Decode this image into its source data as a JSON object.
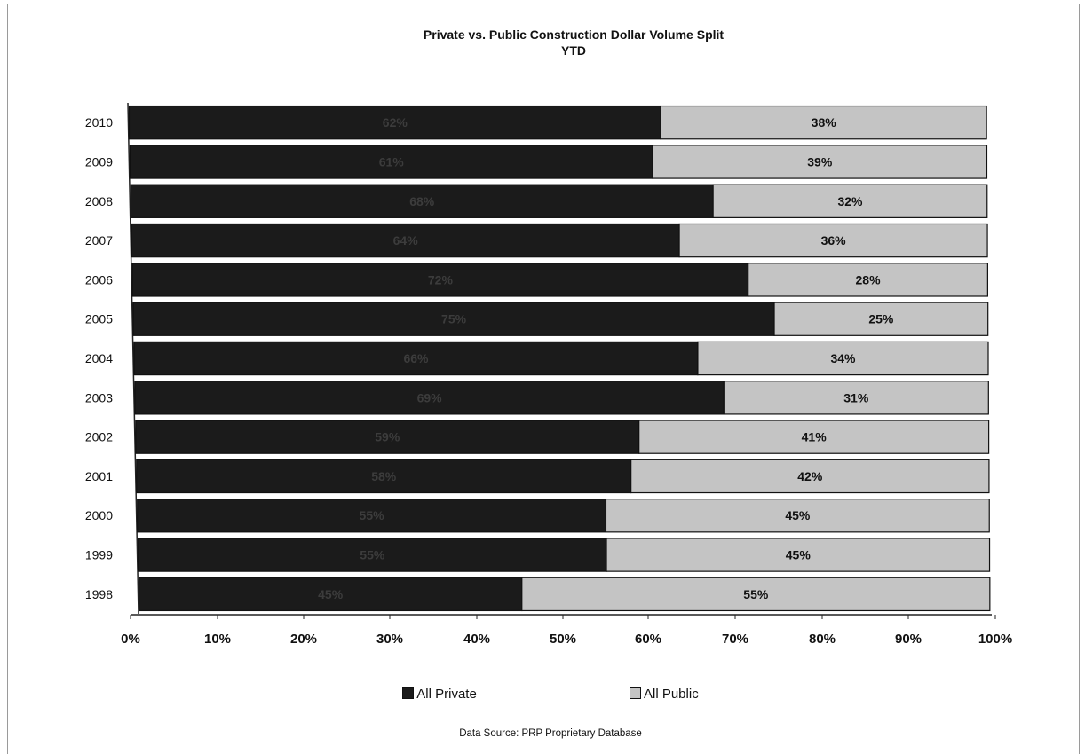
{
  "chart_data": {
    "type": "bar",
    "orientation": "horizontal",
    "stacked": true,
    "title": "Private vs. Public Construction Dollar Volume Split",
    "subtitle": "YTD",
    "categories": [
      "2010",
      "2009",
      "2008",
      "2007",
      "2006",
      "2005",
      "2004",
      "2003",
      "2002",
      "2001",
      "2000",
      "1999",
      "1998"
    ],
    "series": [
      {
        "name": "All Private",
        "values": [
          62,
          61,
          68,
          64,
          72,
          75,
          66,
          69,
          59,
          58,
          55,
          55,
          45
        ],
        "labels": [
          "62%",
          "61%",
          "68%",
          "64%",
          "72%",
          "75%",
          "66%",
          "69%",
          "59%",
          "58%",
          "55%",
          "55%",
          "45%"
        ],
        "color": "#1b1b1b",
        "label_color": "#3c3c3c"
      },
      {
        "name": "All Public",
        "values": [
          38,
          39,
          32,
          36,
          28,
          25,
          34,
          31,
          41,
          42,
          45,
          45,
          55
        ],
        "labels": [
          "38%",
          "39%",
          "32%",
          "36%",
          "28%",
          "25%",
          "34%",
          "31%",
          "41%",
          "42%",
          "45%",
          "45%",
          "55%"
        ],
        "color": "#c4c4c4",
        "label_color": "#111111"
      }
    ],
    "x_ticks": [
      "0%",
      "10%",
      "20%",
      "30%",
      "40%",
      "50%",
      "60%",
      "70%",
      "80%",
      "90%",
      "100%"
    ],
    "xlim": [
      0,
      100
    ],
    "grid": false,
    "legend_position": "bottom"
  },
  "source_note": "Data Source:  PRP Proprietary Database"
}
